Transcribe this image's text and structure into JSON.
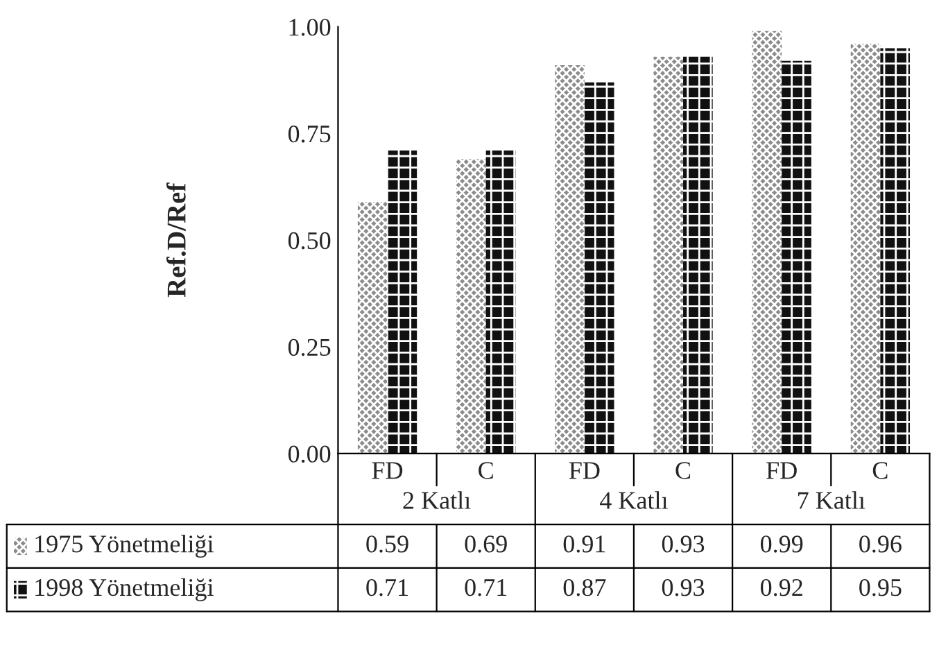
{
  "chart_data": {
    "type": "bar",
    "ylabel": "Ref.D/Ref",
    "categories": [
      "FD",
      "C",
      "FD",
      "C",
      "FD",
      "C"
    ],
    "annotations": [
      "2 Katlı",
      "4 Katlı",
      "7 Katlı"
    ],
    "series": [
      {
        "name": "1975 Yönetmeliği",
        "color": "#8c8c8c",
        "values": [
          0.59,
          0.69,
          0.91,
          0.93,
          0.99,
          0.96
        ]
      },
      {
        "name": "1998 Yönetmeliği",
        "color": "#111111",
        "values": [
          0.71,
          0.71,
          0.87,
          0.93,
          0.92,
          0.95
        ]
      }
    ],
    "ylim": [
      0,
      1
    ],
    "yticks": [
      {
        "value": 0,
        "label": "0.00"
      },
      {
        "value": 0.25,
        "label": "0.25"
      },
      {
        "value": 0.5,
        "label": "0.50"
      },
      {
        "value": 0.75,
        "label": "0.75"
      },
      {
        "value": 1,
        "label": "1.00"
      }
    ],
    "data_labels": true,
    "legend": "bottom left",
    "grid": false
  }
}
